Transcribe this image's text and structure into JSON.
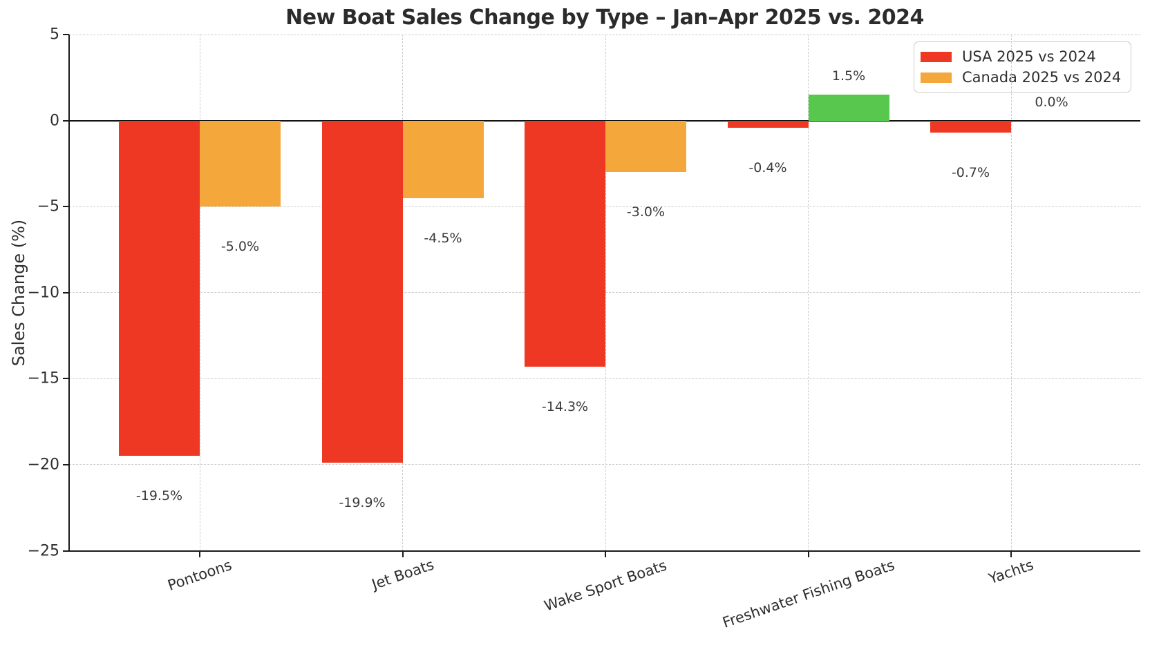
{
  "chart_data": {
    "type": "bar",
    "title": "New Boat Sales Change by Type – Jan–Apr 2025 vs. 2024",
    "ylabel": "Sales Change (%)",
    "xlabel": "",
    "categories": [
      "Pontoons",
      "Jet Boats",
      "Wake Sport Boats",
      "Freshwater Fishing Boats",
      "Yachts"
    ],
    "series": [
      {
        "name": "USA 2025 vs 2024",
        "color": "#ee3823",
        "values": [
          -19.5,
          -19.9,
          -14.3,
          -0.4,
          -0.7
        ],
        "value_labels": [
          "-19.5%",
          "-19.9%",
          "-14.3%",
          "-0.4%",
          "-0.7%"
        ]
      },
      {
        "name": "Canada 2025 vs 2024",
        "color": "#f4a73a",
        "values": [
          -5.0,
          -4.5,
          -3.0,
          1.5,
          0.0
        ],
        "value_labels": [
          "-5.0%",
          "-4.5%",
          "-3.0%",
          "1.5%",
          "0.0%"
        ]
      }
    ],
    "positive_bar_color": "#57c84d",
    "ylim": [
      -25,
      5
    ],
    "yticks": [
      5,
      0,
      -5,
      -10,
      -15,
      -20,
      -25
    ],
    "ytick_labels": [
      "5",
      "0",
      "−5",
      "−10",
      "−15",
      "−20",
      "−25"
    ],
    "grid": true,
    "grid_style": "dashed",
    "zero_line": true,
    "legend_position": "upper right"
  },
  "colors": {
    "background": "#ffffff",
    "grid": "#cccccc",
    "axis": "#1a1a1a",
    "text": "#2e2e2e",
    "value_label": "#3a3a3a",
    "legend_border": "#cccccc"
  }
}
